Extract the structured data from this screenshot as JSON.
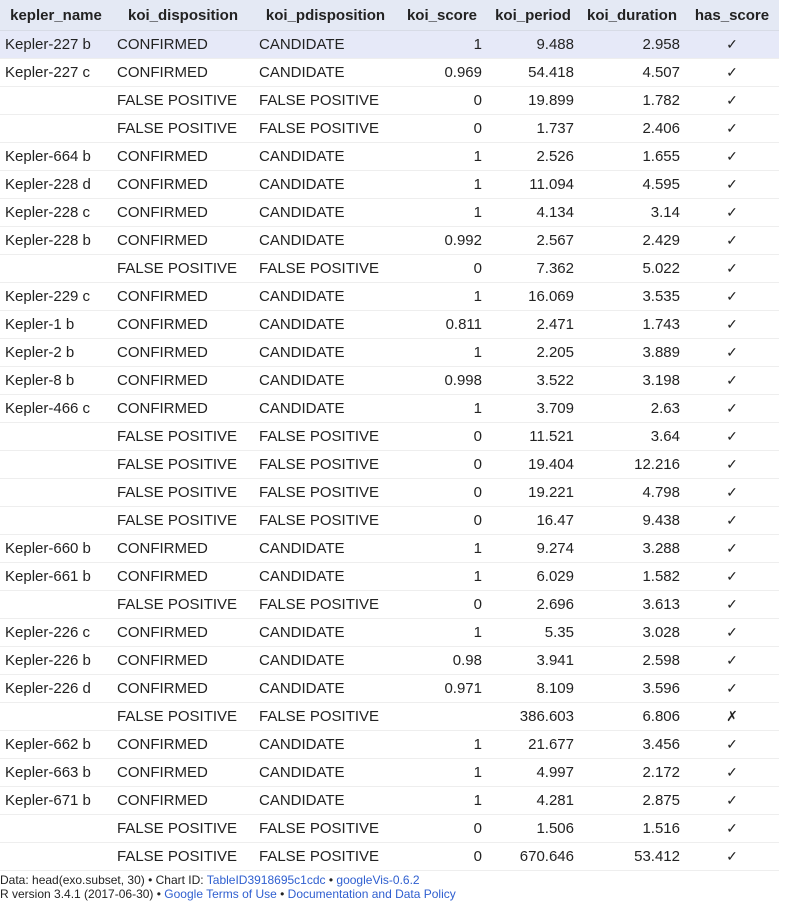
{
  "columns": [
    "kepler_name",
    "koi_disposition",
    "koi_pdisposition",
    "koi_score",
    "koi_period",
    "koi_duration",
    "has_score"
  ],
  "rows": [
    [
      "Kepler-227 b",
      "CONFIRMED",
      "CANDIDATE",
      "1",
      "9.488",
      "2.958",
      "✓"
    ],
    [
      "Kepler-227 c",
      "CONFIRMED",
      "CANDIDATE",
      "0.969",
      "54.418",
      "4.507",
      "✓"
    ],
    [
      "",
      "FALSE POSITIVE",
      "FALSE POSITIVE",
      "0",
      "19.899",
      "1.782",
      "✓"
    ],
    [
      "",
      "FALSE POSITIVE",
      "FALSE POSITIVE",
      "0",
      "1.737",
      "2.406",
      "✓"
    ],
    [
      "Kepler-664 b",
      "CONFIRMED",
      "CANDIDATE",
      "1",
      "2.526",
      "1.655",
      "✓"
    ],
    [
      "Kepler-228 d",
      "CONFIRMED",
      "CANDIDATE",
      "1",
      "11.094",
      "4.595",
      "✓"
    ],
    [
      "Kepler-228 c",
      "CONFIRMED",
      "CANDIDATE",
      "1",
      "4.134",
      "3.14",
      "✓"
    ],
    [
      "Kepler-228 b",
      "CONFIRMED",
      "CANDIDATE",
      "0.992",
      "2.567",
      "2.429",
      "✓"
    ],
    [
      "",
      "FALSE POSITIVE",
      "FALSE POSITIVE",
      "0",
      "7.362",
      "5.022",
      "✓"
    ],
    [
      "Kepler-229 c",
      "CONFIRMED",
      "CANDIDATE",
      "1",
      "16.069",
      "3.535",
      "✓"
    ],
    [
      "Kepler-1 b",
      "CONFIRMED",
      "CANDIDATE",
      "0.811",
      "2.471",
      "1.743",
      "✓"
    ],
    [
      "Kepler-2 b",
      "CONFIRMED",
      "CANDIDATE",
      "1",
      "2.205",
      "3.889",
      "✓"
    ],
    [
      "Kepler-8 b",
      "CONFIRMED",
      "CANDIDATE",
      "0.998",
      "3.522",
      "3.198",
      "✓"
    ],
    [
      "Kepler-466 c",
      "CONFIRMED",
      "CANDIDATE",
      "1",
      "3.709",
      "2.63",
      "✓"
    ],
    [
      "",
      "FALSE POSITIVE",
      "FALSE POSITIVE",
      "0",
      "11.521",
      "3.64",
      "✓"
    ],
    [
      "",
      "FALSE POSITIVE",
      "FALSE POSITIVE",
      "0",
      "19.404",
      "12.216",
      "✓"
    ],
    [
      "",
      "FALSE POSITIVE",
      "FALSE POSITIVE",
      "0",
      "19.221",
      "4.798",
      "✓"
    ],
    [
      "",
      "FALSE POSITIVE",
      "FALSE POSITIVE",
      "0",
      "16.47",
      "9.438",
      "✓"
    ],
    [
      "Kepler-660 b",
      "CONFIRMED",
      "CANDIDATE",
      "1",
      "9.274",
      "3.288",
      "✓"
    ],
    [
      "Kepler-661 b",
      "CONFIRMED",
      "CANDIDATE",
      "1",
      "6.029",
      "1.582",
      "✓"
    ],
    [
      "",
      "FALSE POSITIVE",
      "FALSE POSITIVE",
      "0",
      "2.696",
      "3.613",
      "✓"
    ],
    [
      "Kepler-226 c",
      "CONFIRMED",
      "CANDIDATE",
      "1",
      "5.35",
      "3.028",
      "✓"
    ],
    [
      "Kepler-226 b",
      "CONFIRMED",
      "CANDIDATE",
      "0.98",
      "3.941",
      "2.598",
      "✓"
    ],
    [
      "Kepler-226 d",
      "CONFIRMED",
      "CANDIDATE",
      "0.971",
      "8.109",
      "3.596",
      "✓"
    ],
    [
      "",
      "FALSE POSITIVE",
      "FALSE POSITIVE",
      "",
      "386.603",
      "6.806",
      "✗"
    ],
    [
      "Kepler-662 b",
      "CONFIRMED",
      "CANDIDATE",
      "1",
      "21.677",
      "3.456",
      "✓"
    ],
    [
      "Kepler-663 b",
      "CONFIRMED",
      "CANDIDATE",
      "1",
      "4.997",
      "2.172",
      "✓"
    ],
    [
      "Kepler-671 b",
      "CONFIRMED",
      "CANDIDATE",
      "1",
      "4.281",
      "2.875",
      "✓"
    ],
    [
      "",
      "FALSE POSITIVE",
      "FALSE POSITIVE",
      "0",
      "1.506",
      "1.516",
      "✓"
    ],
    [
      "",
      "FALSE POSITIVE",
      "FALSE POSITIVE",
      "0",
      "670.646",
      "53.412",
      "✓"
    ]
  ],
  "footer": {
    "line1_prefix": "Data: head(exo.subset, 30) • Chart ID: ",
    "chart_id": "TableID3918695c1cdc",
    "sep1": " • ",
    "googlevis": "googleVis-0.6.2",
    "line2_prefix": "R version 3.4.1 (2017-06-30) • ",
    "terms": "Google Terms of Use",
    "sep2": " • ",
    "policy": "Documentation and Data Policy"
  },
  "colors": {
    "header_bg": "#e4e9f4",
    "selected_row_bg": "#e6e9f8",
    "link": "#2f5fd0"
  }
}
